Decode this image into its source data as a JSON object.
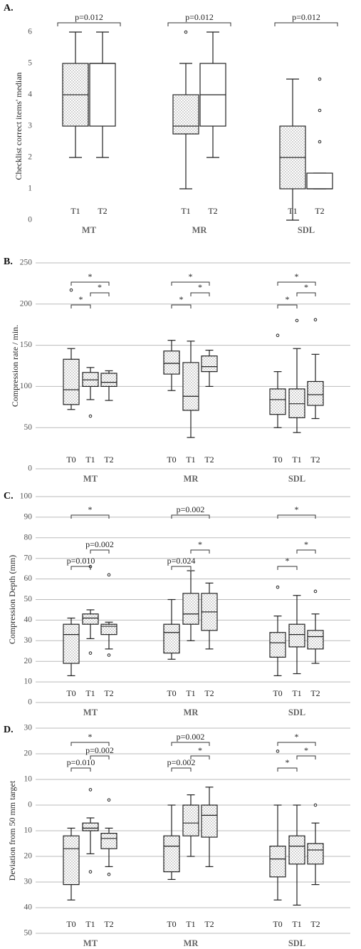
{
  "chart_data": [
    {
      "type": "box",
      "title": "A.",
      "ylabel": "Checklist correct items' median",
      "ylim": [
        0,
        6
      ],
      "yticks": [
        0,
        1,
        2,
        3,
        4,
        5,
        6
      ],
      "grid": false,
      "categories": [
        "MT",
        "MR",
        "SDL"
      ],
      "times": [
        "T1",
        "T2"
      ],
      "dotted": [
        true,
        false
      ],
      "boxes": [
        [
          {
            "min": 2,
            "q1": 3,
            "median": 4,
            "q3": 5,
            "max": 6,
            "outliers": []
          },
          {
            "min": 2,
            "q1": 3,
            "median": 5,
            "q3": 5,
            "max": 6,
            "outliers": []
          }
        ],
        [
          {
            "min": 1,
            "q1": 2.75,
            "median": 3,
            "q3": 4,
            "max": 5,
            "outliers": [
              6
            ]
          },
          {
            "min": 2,
            "q1": 3,
            "median": 4,
            "q3": 5,
            "max": 6,
            "outliers": []
          }
        ],
        [
          {
            "min": 0,
            "q1": 1,
            "median": 2,
            "q3": 3,
            "max": 4.5,
            "outliers": []
          },
          {
            "min": 1,
            "q1": 1,
            "median": 1,
            "q3": 1.5,
            "max": 1.5,
            "outliers": [
              2.5,
              3.5,
              4.5
            ]
          }
        ]
      ],
      "brackets": [
        [
          "p=0.012"
        ],
        [
          "p=0.012"
        ],
        [
          "p=0.012"
        ]
      ]
    },
    {
      "type": "box",
      "title": "B.",
      "ylabel": "Compression rate / min.",
      "ylim": [
        0,
        250
      ],
      "yticks": [
        0,
        50,
        100,
        150,
        200,
        250
      ],
      "grid": true,
      "categories": [
        "MT",
        "MR",
        "SDL"
      ],
      "times": [
        "T0",
        "T1",
        "T2"
      ],
      "dotted": [
        true,
        true,
        true
      ],
      "boxes": [
        [
          {
            "min": 72,
            "q1": 78,
            "median": 96,
            "q3": 133,
            "max": 146,
            "outliers": [
              217
            ]
          },
          {
            "min": 84,
            "q1": 100,
            "median": 108,
            "q3": 117,
            "max": 123,
            "outliers": [
              64
            ]
          },
          {
            "min": 83,
            "q1": 100,
            "median": 105,
            "q3": 116,
            "max": 119,
            "outliers": []
          }
        ],
        [
          {
            "min": 95,
            "q1": 115,
            "median": 128,
            "q3": 143,
            "max": 156,
            "outliers": []
          },
          {
            "min": 38,
            "q1": 71,
            "median": 88,
            "q3": 129,
            "max": 155,
            "outliers": []
          },
          {
            "min": 100,
            "q1": 118,
            "median": 124,
            "q3": 137,
            "max": 144,
            "outliers": []
          }
        ],
        [
          {
            "min": 50,
            "q1": 66,
            "median": 84,
            "q3": 97,
            "max": 118,
            "outliers": [
              162
            ]
          },
          {
            "min": 44,
            "q1": 62,
            "median": 79,
            "q3": 97,
            "max": 146,
            "outliers": [
              180
            ]
          },
          {
            "min": 61,
            "q1": 77,
            "median": 90,
            "q3": 106,
            "max": 139,
            "outliers": [
              181
            ]
          }
        ]
      ],
      "brackets": [
        [
          "*",
          "*",
          "*"
        ],
        [
          "*",
          "*",
          "*"
        ],
        [
          "*",
          "*",
          "*"
        ]
      ]
    },
    {
      "type": "box",
      "title": "C.",
      "ylabel": "Compression Depth (mm)",
      "ylim": [
        0,
        100
      ],
      "yticks": [
        0,
        10,
        20,
        30,
        40,
        50,
        60,
        70,
        80,
        90,
        100
      ],
      "grid": true,
      "categories": [
        "MT",
        "MR",
        "SDL"
      ],
      "times": [
        "T0",
        "T1",
        "T2"
      ],
      "dotted": [
        true,
        true,
        true
      ],
      "boxes": [
        [
          {
            "min": 13,
            "q1": 19,
            "median": 33,
            "q3": 38,
            "max": 41,
            "outliers": []
          },
          {
            "min": 31,
            "q1": 38,
            "median": 41,
            "q3": 43,
            "max": 45,
            "outliers": [
              66,
              24
            ]
          },
          {
            "min": 26,
            "q1": 33,
            "median": 37,
            "q3": 38,
            "max": 39,
            "outliers": [
              62,
              23
            ]
          }
        ],
        [
          {
            "min": 21,
            "q1": 24,
            "median": 34,
            "q3": 38,
            "max": 50,
            "outliers": []
          },
          {
            "min": 30,
            "q1": 38,
            "median": 43,
            "q3": 53,
            "max": 64,
            "outliers": []
          },
          {
            "min": 26,
            "q1": 35,
            "median": 44,
            "q3": 53,
            "max": 58,
            "outliers": []
          }
        ],
        [
          {
            "min": 13,
            "q1": 22,
            "median": 29,
            "q3": 34,
            "max": 42,
            "outliers": [
              56
            ]
          },
          {
            "min": 14,
            "q1": 27,
            "median": 33,
            "q3": 38,
            "max": 52,
            "outliers": []
          },
          {
            "min": 19,
            "q1": 26,
            "median": 32,
            "q3": 35,
            "max": 43,
            "outliers": [
              54
            ]
          }
        ]
      ],
      "brackets": [
        [
          "p=0.010",
          "p=0.002",
          "*"
        ],
        [
          "p=0.024",
          "*",
          "p=0.002"
        ],
        [
          "*",
          "*",
          "*"
        ]
      ]
    },
    {
      "type": "box",
      "title": "D.",
      "ylabel": "Deviation from 50 mm target",
      "ylim": [
        -50,
        30
      ],
      "yticks": [
        30,
        20,
        10,
        0,
        {
          "value": -10,
          "label": "10"
        },
        {
          "value": -20,
          "label": "20"
        },
        {
          "value": -30,
          "label": "30"
        },
        {
          "value": -40,
          "label": "40"
        },
        {
          "value": -50,
          "label": "50"
        }
      ],
      "grid": true,
      "categories": [
        "MT",
        "MR",
        "SDL"
      ],
      "times": [
        "T0",
        "T1",
        "T2"
      ],
      "dotted": [
        true,
        true,
        true
      ],
      "boxes": [
        [
          {
            "min": -37,
            "q1": -31,
            "median": -17,
            "q3": -12,
            "max": -9,
            "outliers": []
          },
          {
            "min": -19,
            "q1": -10,
            "median": -9,
            "q3": -7,
            "max": -5,
            "outliers": [
              6,
              -26
            ]
          },
          {
            "min": -24,
            "q1": -17,
            "median": -13,
            "q3": -11,
            "max": -9,
            "outliers": [
              2,
              -27
            ]
          }
        ],
        [
          {
            "min": -29,
            "q1": -26,
            "median": -16,
            "q3": -12,
            "max": 0,
            "outliers": []
          },
          {
            "min": -20,
            "q1": -12,
            "median": -7,
            "q3": 0,
            "max": 4,
            "outliers": []
          },
          {
            "min": -24,
            "q1": -12.5,
            "median": -4,
            "q3": 0,
            "max": 7,
            "outliers": []
          }
        ],
        [
          {
            "min": -37,
            "q1": -28,
            "median": -21,
            "q3": -16,
            "max": 0,
            "outliers": [
              21
            ]
          },
          {
            "min": -39,
            "q1": -23,
            "median": -16,
            "q3": -12,
            "max": 0,
            "outliers": []
          },
          {
            "min": -31,
            "q1": -23,
            "median": -17.5,
            "q3": -15,
            "max": -7,
            "outliers": [
              0
            ]
          }
        ]
      ],
      "brackets": [
        [
          "p=0.010",
          "p=0.002",
          "*"
        ],
        [
          "p=0.002",
          "*",
          "p=0.002"
        ],
        [
          "*",
          "*",
          "*"
        ]
      ]
    }
  ]
}
